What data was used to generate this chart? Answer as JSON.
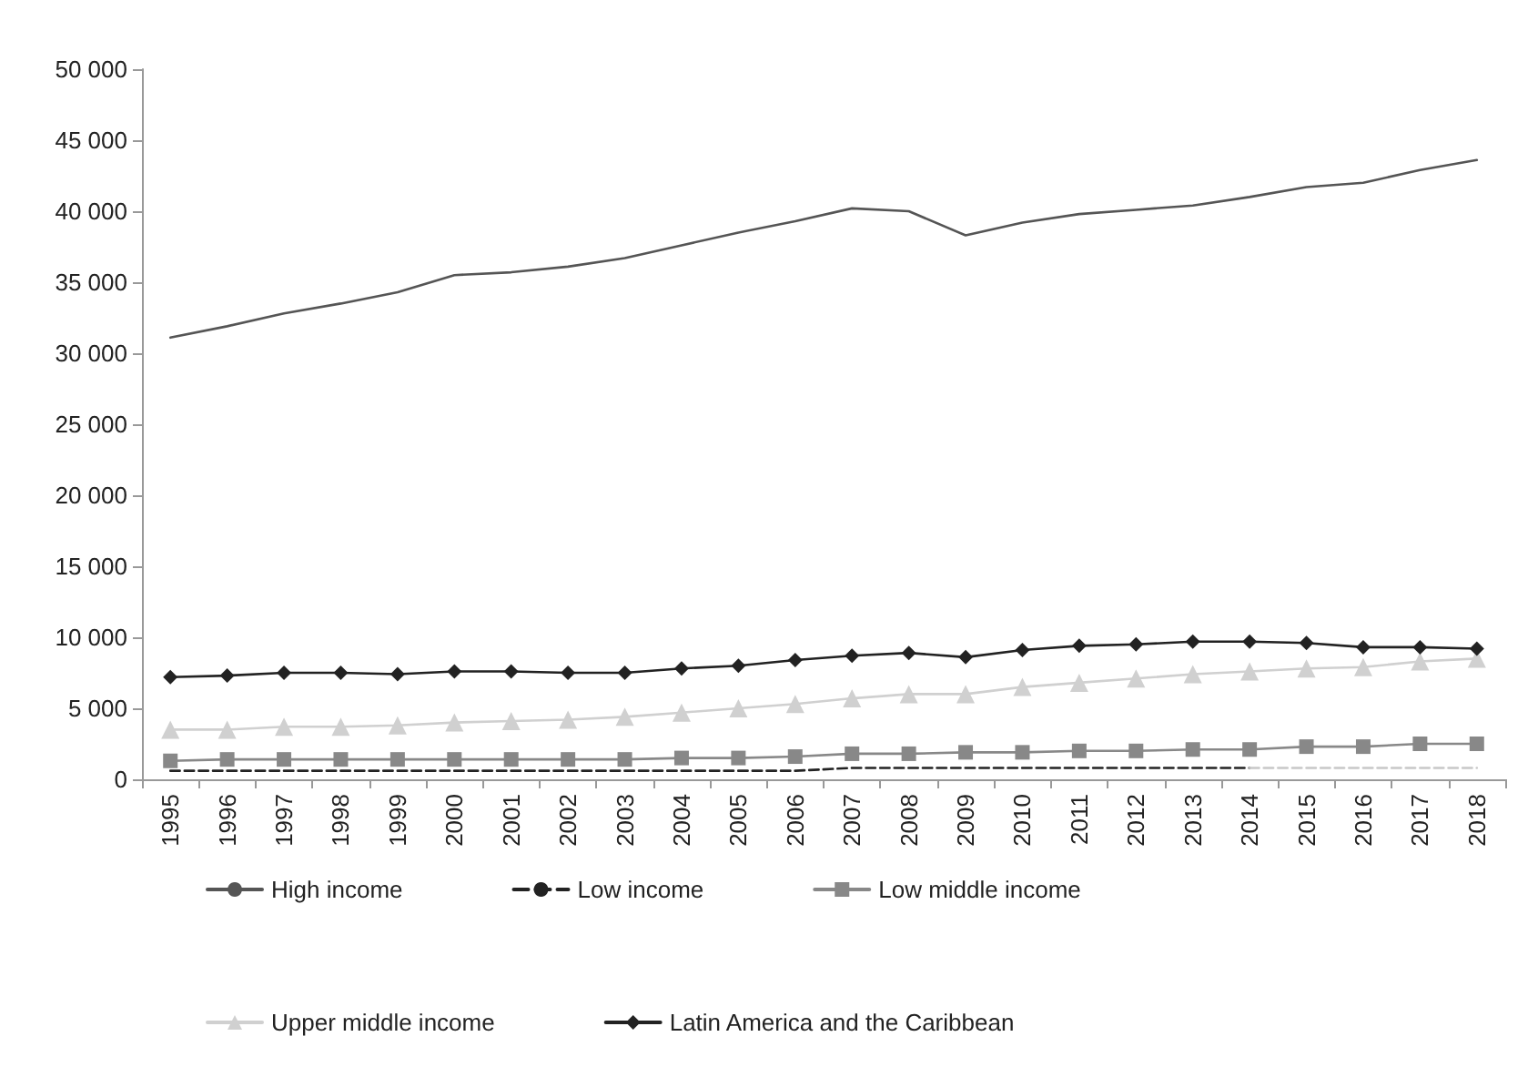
{
  "chart_data": {
    "type": "line",
    "categories": [
      "1995",
      "1996",
      "1997",
      "1998",
      "1999",
      "2000",
      "2001",
      "2002",
      "2003",
      "2004",
      "2005",
      "2006",
      "2007",
      "2008",
      "2009",
      "2010",
      "2011",
      "2012",
      "2013",
      "2014",
      "2015",
      "2016",
      "2017",
      "2018"
    ],
    "ylim": [
      0,
      50000
    ],
    "yticks": [
      0,
      {
        "value": 5000,
        "label": "5 000"
      },
      {
        "value": 10000,
        "label": "10 000"
      },
      {
        "value": 15000,
        "label": "15 000"
      },
      {
        "value": 20000,
        "label": "20 000"
      },
      {
        "value": 25000,
        "label": "25 000"
      },
      {
        "value": 30000,
        "label": "30 000"
      },
      {
        "value": 35000,
        "label": "35 000"
      },
      {
        "value": 40000,
        "label": "40 000"
      },
      {
        "value": 45000,
        "label": "45 000"
      },
      {
        "value": 50000,
        "label": "50 000"
      }
    ],
    "grid": false,
    "legend": "bottom",
    "series": [
      {
        "name": "High income",
        "color": "#555555",
        "marker": "none",
        "line_style": "solid",
        "values": [
          31100,
          31900,
          32800,
          33500,
          34300,
          35500,
          35700,
          36100,
          36700,
          37600,
          38500,
          39300,
          40200,
          40000,
          38300,
          39200,
          39800,
          40100,
          40400,
          41000,
          41700,
          42000,
          42900,
          43600
        ]
      },
      {
        "name": "Low income",
        "color": "#222222",
        "marker": "none",
        "line_style": "dashed",
        "values": [
          600,
          600,
          600,
          600,
          600,
          600,
          600,
          600,
          600,
          600,
          600,
          600,
          800,
          800,
          800,
          800,
          800,
          800,
          800,
          800,
          null,
          null,
          null,
          null
        ]
      },
      {
        "color": "#c8c8c8",
        "marker": "none",
        "line_style": "dashed",
        "values": [
          null,
          null,
          null,
          null,
          null,
          null,
          null,
          null,
          null,
          null,
          null,
          null,
          null,
          null,
          null,
          null,
          null,
          null,
          null,
          800,
          800,
          800,
          800,
          800
        ]
      },
      {
        "name": "Low middle income",
        "color": "#888888",
        "marker": "square",
        "line_style": "solid",
        "values": [
          1300,
          1400,
          1400,
          1400,
          1400,
          1400,
          1400,
          1400,
          1400,
          1500,
          1500,
          1600,
          1800,
          1800,
          1900,
          1900,
          2000,
          2000,
          2100,
          2100,
          2300,
          2300,
          2500,
          2500
        ]
      },
      {
        "name": "Upper middle income",
        "color": "#d0d0d0",
        "marker": "triangle",
        "line_style": "solid",
        "values": [
          3500,
          3500,
          3700,
          3700,
          3800,
          4000,
          4100,
          4200,
          4400,
          4700,
          5000,
          5300,
          5700,
          6000,
          6000,
          6500,
          6800,
          7100,
          7400,
          7600,
          7800,
          7900,
          8300,
          8500
        ]
      },
      {
        "name": "Latin America and the Caribbean",
        "color": "#222222",
        "marker": "diamond",
        "line_style": "solid",
        "values": [
          7200,
          7300,
          7500,
          7500,
          7400,
          7600,
          7600,
          7500,
          7500,
          7800,
          8000,
          8400,
          8700,
          8900,
          8600,
          9100,
          9400,
          9500,
          9700,
          9700,
          9600,
          9300,
          9300,
          9200
        ]
      }
    ]
  }
}
